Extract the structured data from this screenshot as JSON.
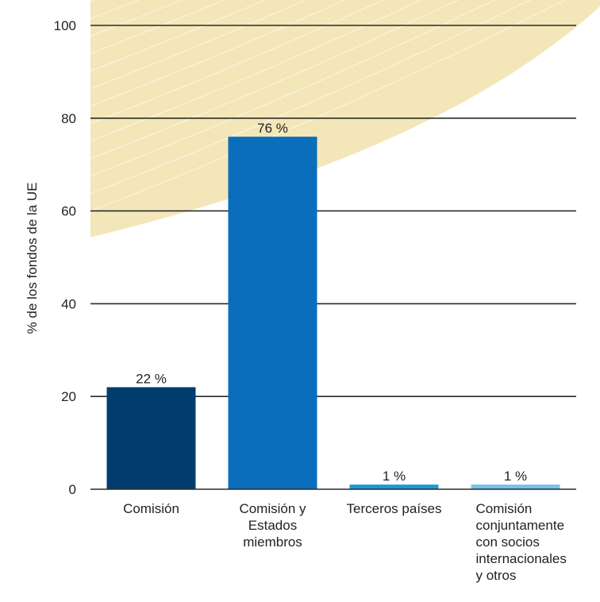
{
  "chart_data": {
    "type": "bar",
    "title": "",
    "xlabel": "",
    "ylabel": "% de los fondos de la UE",
    "ylim": [
      0,
      100
    ],
    "yticks": [
      0,
      20,
      40,
      60,
      80,
      100
    ],
    "grid": true,
    "categories": [
      [
        "Comisión"
      ],
      [
        "Comisión y",
        "Estados",
        "miembros"
      ],
      [
        "Terceros países"
      ],
      [
        "Comisión",
        "conjuntamente",
        "con socios",
        "internacionales",
        "y otros"
      ]
    ],
    "values": [
      22,
      76,
      1,
      1
    ],
    "data_labels": [
      "22 %",
      "76 %",
      "1 %",
      "1 %"
    ],
    "colors": [
      "#003d6e",
      "#0a6ebd",
      "#1a9ad6",
      "#72c4e8"
    ],
    "background_accent": "#f3e6b8"
  }
}
